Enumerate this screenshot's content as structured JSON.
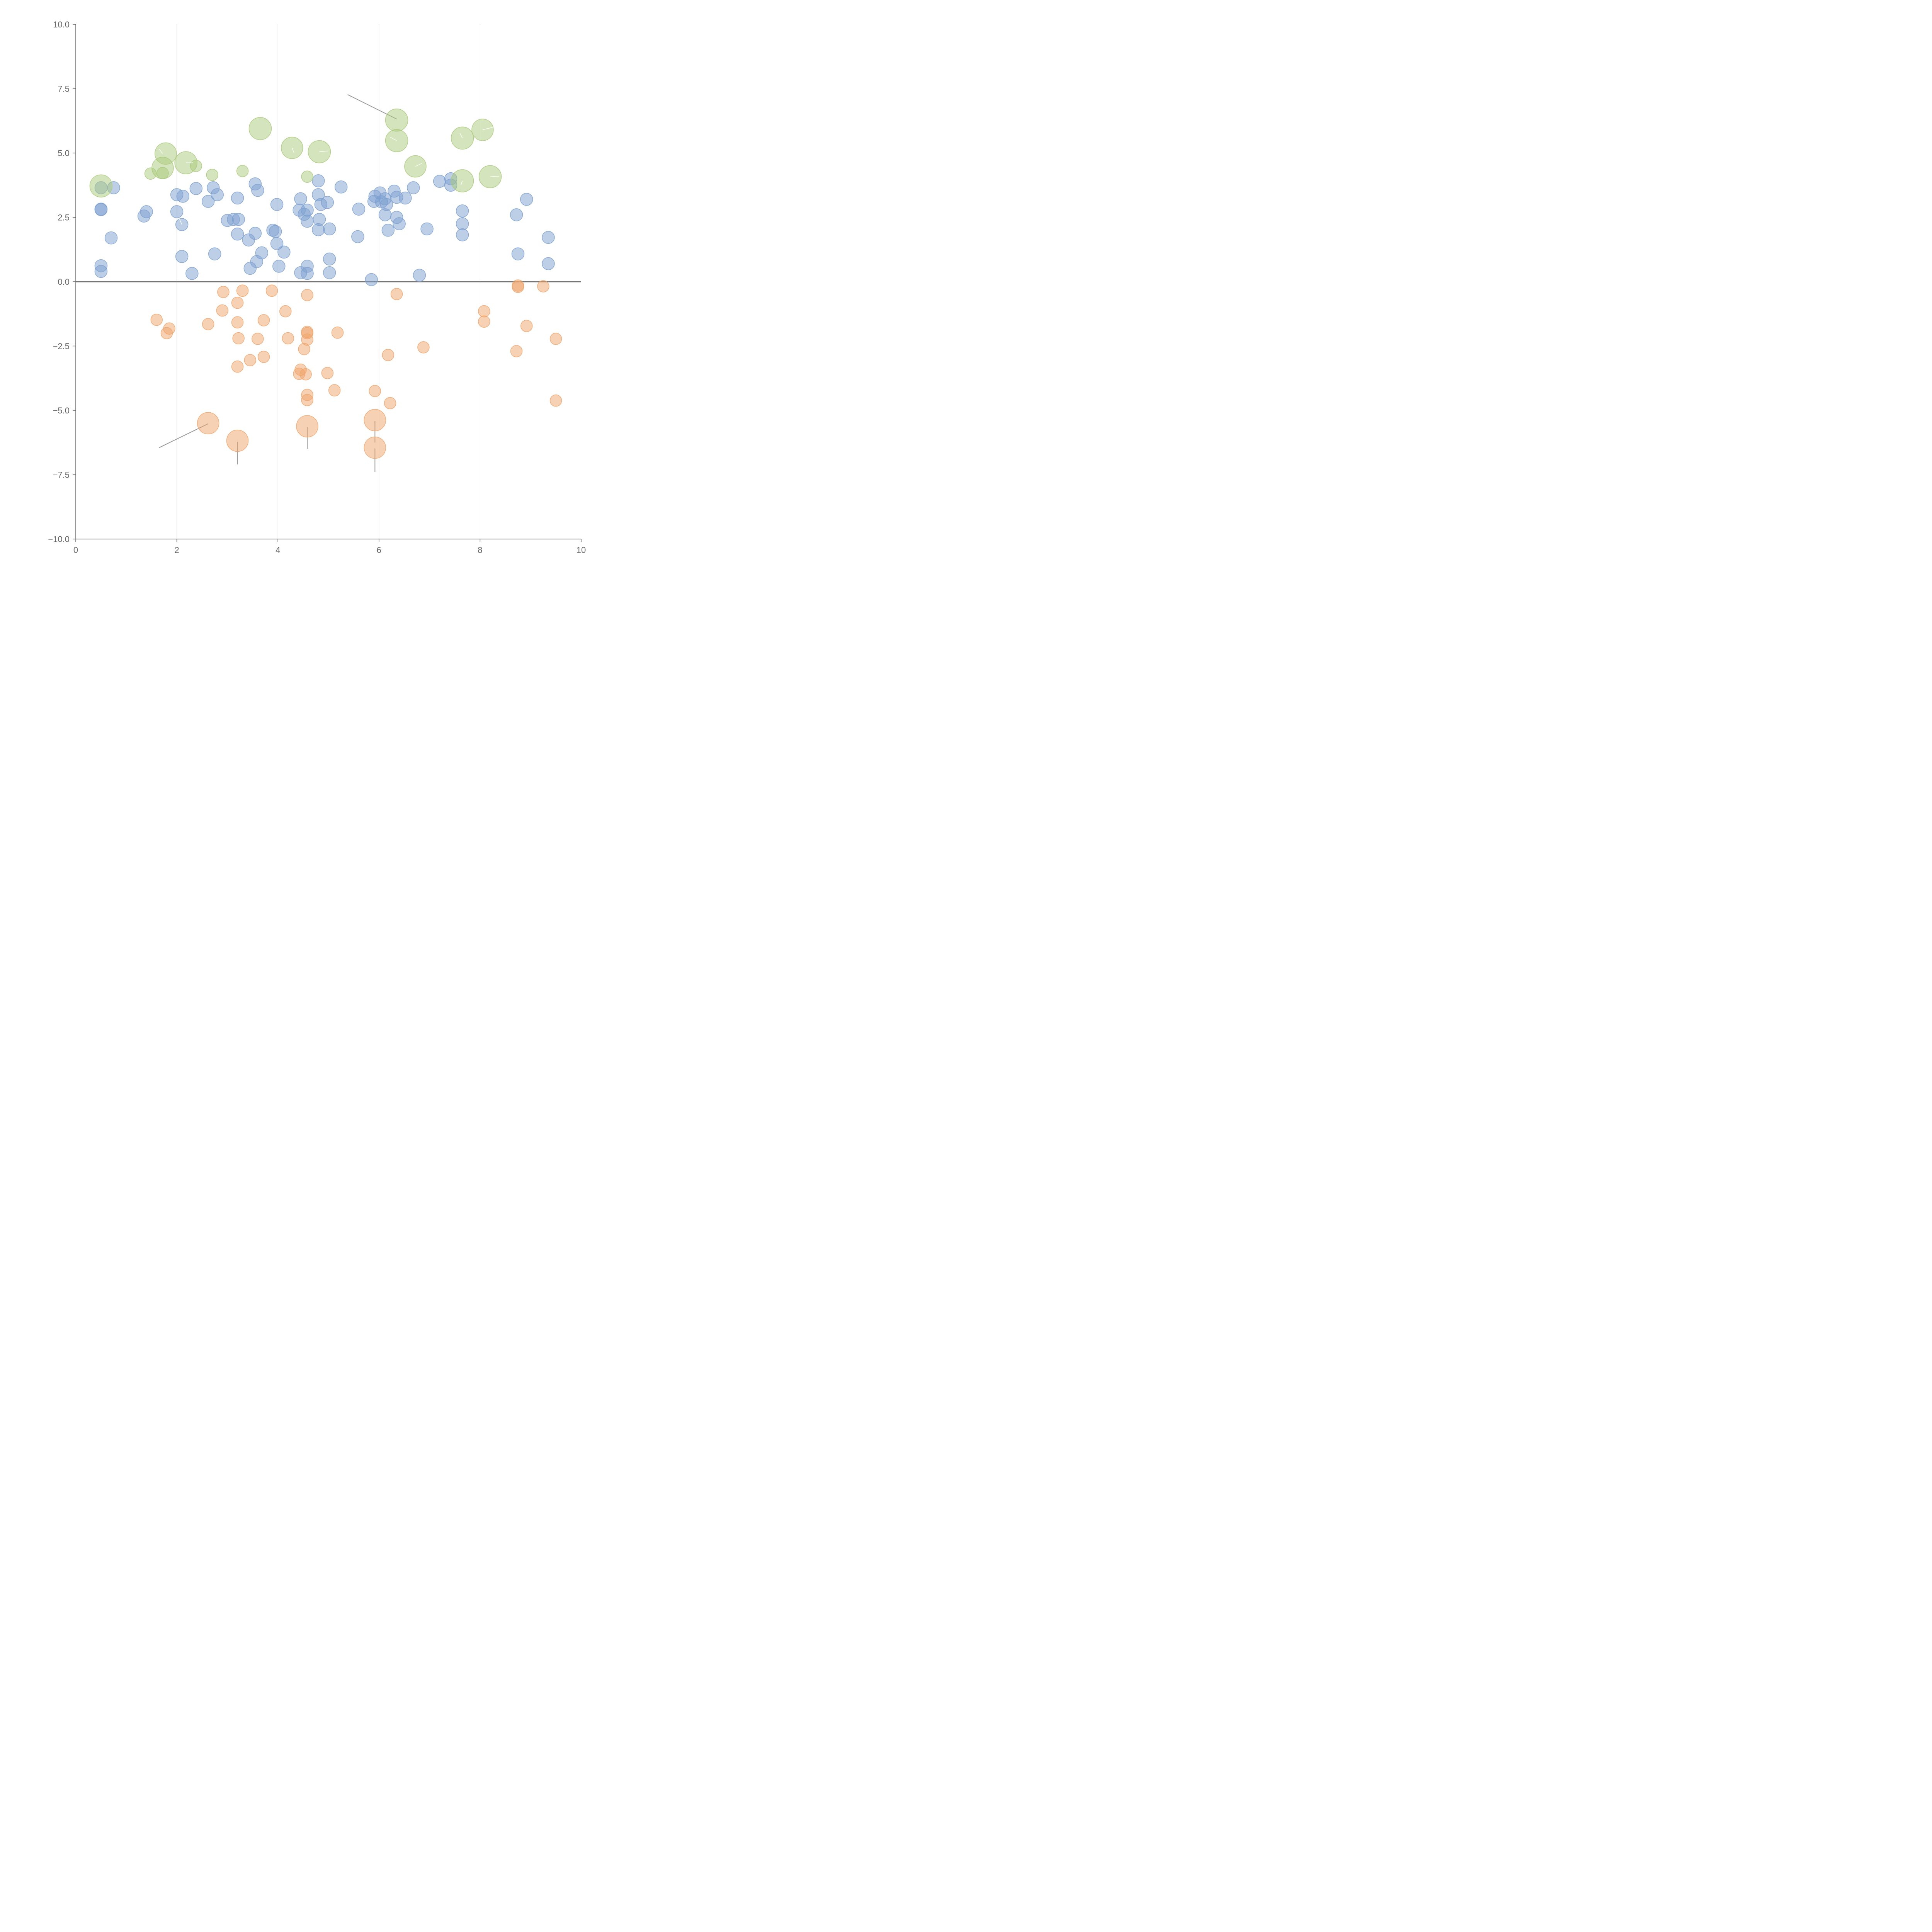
{
  "chart_data": {
    "type": "scatter",
    "title": "",
    "xlabel": "",
    "ylabel": "",
    "xlim": [
      0,
      10
    ],
    "ylim": [
      -10,
      10
    ],
    "x_ticks": [
      0,
      2,
      4,
      6,
      8,
      10
    ],
    "x_tick_labels": [
      "0",
      "2",
      "4",
      "6",
      "8",
      "10"
    ],
    "y_ticks": [
      10,
      7.5,
      5,
      2.5,
      0,
      -2.5,
      -5,
      -7.5,
      -10
    ],
    "y_tick_labels": [
      "10.0",
      "7.5",
      "5.0",
      "2.5",
      "0.0",
      "−2.5",
      "−5.0",
      "−7.5",
      "−10.0"
    ],
    "grid": "vertical",
    "zero_line": true,
    "legend": "none",
    "series": [
      {
        "name": "positive",
        "color": "#7b9fcf",
        "points": [
          [
            0.5,
            3.65
          ],
          [
            0.75,
            3.65
          ],
          [
            0.5,
            2.8
          ],
          [
            0.5,
            2.82
          ],
          [
            0.7,
            1.7
          ],
          [
            0.5,
            0.62
          ],
          [
            0.5,
            0.4
          ],
          [
            1.35,
            2.55
          ],
          [
            1.4,
            2.72
          ],
          [
            2.0,
            3.38
          ],
          [
            2.12,
            3.32
          ],
          [
            2.0,
            2.72
          ],
          [
            2.1,
            2.22
          ],
          [
            2.38,
            3.62
          ],
          [
            2.1,
            0.98
          ],
          [
            2.3,
            0.32
          ],
          [
            2.62,
            3.12
          ],
          [
            2.72,
            3.65
          ],
          [
            2.8,
            3.38
          ],
          [
            2.75,
            1.08
          ],
          [
            3.0,
            2.38
          ],
          [
            3.12,
            2.42
          ],
          [
            3.22,
            2.42
          ],
          [
            3.2,
            3.25
          ],
          [
            3.2,
            1.85
          ],
          [
            3.42,
            1.62
          ],
          [
            3.55,
            1.88
          ],
          [
            3.55,
            3.8
          ],
          [
            3.6,
            3.55
          ],
          [
            3.68,
            1.12
          ],
          [
            3.58,
            0.78
          ],
          [
            3.45,
            0.52
          ],
          [
            3.9,
            2.0
          ],
          [
            3.95,
            1.95
          ],
          [
            3.98,
            1.48
          ],
          [
            3.98,
            3.0
          ],
          [
            4.02,
            0.6
          ],
          [
            4.12,
            1.15
          ],
          [
            4.45,
            3.22
          ],
          [
            4.42,
            2.78
          ],
          [
            4.52,
            2.62
          ],
          [
            4.58,
            2.78
          ],
          [
            4.58,
            2.35
          ],
          [
            4.45,
            0.35
          ],
          [
            4.58,
            0.6
          ],
          [
            4.58,
            0.32
          ],
          [
            4.8,
            3.92
          ],
          [
            4.8,
            3.38
          ],
          [
            4.85,
            3.0
          ],
          [
            4.98,
            3.08
          ],
          [
            4.82,
            2.42
          ],
          [
            4.8,
            2.02
          ],
          [
            5.02,
            2.05
          ],
          [
            5.02,
            0.88
          ],
          [
            5.02,
            0.35
          ],
          [
            5.25,
            3.68
          ],
          [
            5.6,
            2.82
          ],
          [
            5.58,
            1.75
          ],
          [
            5.9,
            3.12
          ],
          [
            5.92,
            3.32
          ],
          [
            6.02,
            3.45
          ],
          [
            6.05,
            3.1
          ],
          [
            6.12,
            3.22
          ],
          [
            6.15,
            3.0
          ],
          [
            6.12,
            2.6
          ],
          [
            6.18,
            2.0
          ],
          [
            6.3,
            3.52
          ],
          [
            6.35,
            3.28
          ],
          [
            6.35,
            2.5
          ],
          [
            6.4,
            2.25
          ],
          [
            6.52,
            3.25
          ],
          [
            6.68,
            3.65
          ],
          [
            5.85,
            0.08
          ],
          [
            6.95,
            2.05
          ],
          [
            6.8,
            0.25
          ],
          [
            7.2,
            3.9
          ],
          [
            7.42,
            4.0
          ],
          [
            7.42,
            3.75
          ],
          [
            7.65,
            2.75
          ],
          [
            7.65,
            2.25
          ],
          [
            7.65,
            1.82
          ],
          [
            8.72,
            2.6
          ],
          [
            8.92,
            3.2
          ],
          [
            8.75,
            1.08
          ],
          [
            9.35,
            1.72
          ],
          [
            9.35,
            0.7
          ]
        ]
      },
      {
        "name": "negative",
        "color": "#efa46a",
        "points": [
          [
            2.92,
            -0.4
          ],
          [
            3.3,
            -0.35
          ],
          [
            3.2,
            -0.82
          ],
          [
            2.9,
            -1.12
          ],
          [
            1.6,
            -1.48
          ],
          [
            1.85,
            -1.82
          ],
          [
            1.8,
            -2.0
          ],
          [
            2.62,
            -1.65
          ],
          [
            3.2,
            -1.58
          ],
          [
            3.22,
            -2.2
          ],
          [
            3.72,
            -1.5
          ],
          [
            3.6,
            -2.22
          ],
          [
            3.88,
            -0.35
          ],
          [
            4.15,
            -1.15
          ],
          [
            4.2,
            -2.2
          ],
          [
            4.58,
            -0.52
          ],
          [
            4.58,
            -1.95
          ],
          [
            4.58,
            -2.0
          ],
          [
            4.58,
            -2.25
          ],
          [
            4.52,
            -2.62
          ],
          [
            5.18,
            -1.98
          ],
          [
            3.45,
            -3.05
          ],
          [
            3.72,
            -2.92
          ],
          [
            3.2,
            -3.3
          ],
          [
            4.45,
            -3.42
          ],
          [
            4.42,
            -3.58
          ],
          [
            4.55,
            -3.6
          ],
          [
            4.98,
            -3.55
          ],
          [
            4.58,
            -4.4
          ],
          [
            4.58,
            -4.6
          ],
          [
            5.12,
            -4.22
          ],
          [
            5.92,
            -4.25
          ],
          [
            6.22,
            -4.72
          ],
          [
            6.18,
            -2.85
          ],
          [
            6.35,
            -0.48
          ],
          [
            6.88,
            -2.55
          ],
          [
            8.08,
            -1.15
          ],
          [
            8.08,
            -1.55
          ],
          [
            8.75,
            -0.15
          ],
          [
            8.75,
            -0.2
          ],
          [
            9.25,
            -0.18
          ],
          [
            8.92,
            -1.72
          ],
          [
            8.72,
            -2.7
          ],
          [
            9.5,
            -2.22
          ],
          [
            9.5,
            -4.62
          ]
        ]
      },
      {
        "name": "positive-large",
        "color": "#a9c97a",
        "points": [
          [
            0.5,
            3.72
          ],
          [
            1.48,
            4.2
          ],
          [
            1.72,
            4.22
          ],
          [
            1.72,
            4.42
          ],
          [
            1.78,
            4.98
          ],
          [
            2.18,
            4.62
          ],
          [
            2.38,
            4.5
          ],
          [
            2.7,
            4.15
          ],
          [
            3.3,
            4.3
          ],
          [
            3.65,
            5.95
          ],
          [
            4.28,
            5.2
          ],
          [
            4.58,
            4.08
          ],
          [
            4.82,
            5.05
          ],
          [
            6.35,
            6.28
          ],
          [
            6.35,
            5.48
          ],
          [
            6.72,
            4.48
          ],
          [
            7.65,
            5.58
          ],
          [
            7.65,
            3.92
          ],
          [
            8.05,
            5.9
          ],
          [
            8.2,
            4.08
          ]
        ]
      },
      {
        "name": "negative-large",
        "color": "#efa46a",
        "points": [
          [
            2.62,
            -5.5
          ],
          [
            3.2,
            -6.18
          ],
          [
            4.58,
            -5.62
          ],
          [
            5.92,
            -5.38
          ],
          [
            5.92,
            -6.45
          ]
        ]
      }
    ],
    "leader_lines": [
      [
        [
          6.35,
          6.32
        ],
        [
          5.38,
          7.27
        ]
      ],
      [
        [
          2.62,
          -5.52
        ],
        [
          1.65,
          -6.45
        ]
      ],
      [
        [
          3.2,
          -6.22
        ],
        [
          3.2,
          -7.1
        ]
      ],
      [
        [
          4.58,
          -5.65
        ],
        [
          4.58,
          -6.5
        ]
      ],
      [
        [
          5.92,
          -5.42
        ],
        [
          5.92,
          -6.25
        ]
      ],
      [
        [
          5.92,
          -6.48
        ],
        [
          5.92,
          -7.4
        ]
      ]
    ],
    "inner_leaders": [
      [
        [
          1.72,
          4.98
        ],
        [
          1.65,
          5.15
        ]
      ],
      [
        [
          2.18,
          4.62
        ],
        [
          2.32,
          4.62
        ]
      ],
      [
        [
          4.28,
          5.2
        ],
        [
          4.32,
          5.0
        ]
      ],
      [
        [
          4.82,
          5.05
        ],
        [
          5.0,
          5.08
        ]
      ],
      [
        [
          6.35,
          5.48
        ],
        [
          6.22,
          5.62
        ]
      ],
      [
        [
          6.72,
          4.48
        ],
        [
          6.85,
          4.6
        ]
      ],
      [
        [
          7.65,
          5.58
        ],
        [
          7.6,
          5.78
        ]
      ],
      [
        [
          8.05,
          5.9
        ],
        [
          8.25,
          6.0
        ]
      ],
      [
        [
          8.2,
          4.08
        ],
        [
          8.38,
          4.1
        ]
      ],
      [
        [
          7.65,
          3.92
        ],
        [
          7.62,
          3.75
        ]
      ],
      [
        [
          2.1,
          2.22
        ],
        [
          2.05,
          2.45
        ]
      ]
    ]
  }
}
